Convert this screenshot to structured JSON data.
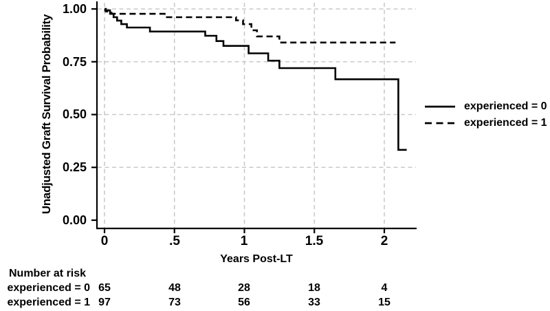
{
  "chart_data": {
    "type": "line",
    "subtype": "kaplan-meier-step",
    "title": "",
    "xlabel": "Years Post-LT",
    "ylabel": "Unadjusted Graft Survival Probability",
    "xlim": [
      0,
      2.23
    ],
    "ylim": [
      0.0,
      1.0
    ],
    "grid": "dashed light-gray gridlines at every labeled tick, both axes",
    "legend_position": "right-outside-middle",
    "x_ticks": [
      {
        "value": 0,
        "label": "0"
      },
      {
        "value": 0.5,
        "label": ".5"
      },
      {
        "value": 1,
        "label": "1"
      },
      {
        "value": 1.5,
        "label": "1.5"
      },
      {
        "value": 2,
        "label": "2"
      }
    ],
    "y_ticks": [
      {
        "value": 0.0,
        "label": "0.00"
      },
      {
        "value": 0.25,
        "label": "0.25"
      },
      {
        "value": 0.5,
        "label": "0.50"
      },
      {
        "value": 0.75,
        "label": "0.75"
      },
      {
        "value": 1.0,
        "label": "1.00"
      }
    ],
    "series": [
      {
        "name": "experienced = 0",
        "style": "solid",
        "color": "#000000",
        "points": [
          [
            0,
            1.0
          ],
          [
            0.005,
            0.993
          ],
          [
            0.04,
            0.977
          ],
          [
            0.065,
            0.961
          ],
          [
            0.09,
            0.945
          ],
          [
            0.12,
            0.928
          ],
          [
            0.16,
            0.912
          ],
          [
            0.325,
            0.893
          ],
          [
            0.72,
            0.873
          ],
          [
            0.8,
            0.848
          ],
          [
            0.85,
            0.825
          ],
          [
            1.03,
            0.79
          ],
          [
            1.17,
            0.755
          ],
          [
            1.25,
            0.72
          ],
          [
            1.65,
            0.667
          ],
          [
            2.1,
            0.333
          ]
        ],
        "end_t": 2.16
      },
      {
        "name": "experienced = 1",
        "style": "dashed",
        "color": "#000000",
        "points": [
          [
            0,
            1.0
          ],
          [
            0.01,
            0.988
          ],
          [
            0.05,
            0.977
          ],
          [
            0.43,
            0.961
          ],
          [
            0.94,
            0.946
          ],
          [
            0.99,
            0.928
          ],
          [
            1.05,
            0.899
          ],
          [
            1.09,
            0.87
          ],
          [
            1.25,
            0.841
          ]
        ],
        "end_t": 2.08
      }
    ]
  },
  "legend": {
    "items": [
      {
        "label": "experienced = 0",
        "style": "solid"
      },
      {
        "label": "experienced = 1",
        "style": "dashed"
      }
    ]
  },
  "risk_table": {
    "title": "Number at risk",
    "time_points": [
      0,
      0.5,
      1,
      1.5,
      2
    ],
    "rows": [
      {
        "label": "experienced = 0",
        "counts": [
          "65",
          "48",
          "28",
          "18",
          "4"
        ]
      },
      {
        "label": "experienced = 1",
        "counts": [
          "97",
          "73",
          "56",
          "33",
          "15"
        ]
      }
    ]
  },
  "colors": {
    "ink": "#000000",
    "grid": "#c9c9c9",
    "background": "#ffffff"
  }
}
